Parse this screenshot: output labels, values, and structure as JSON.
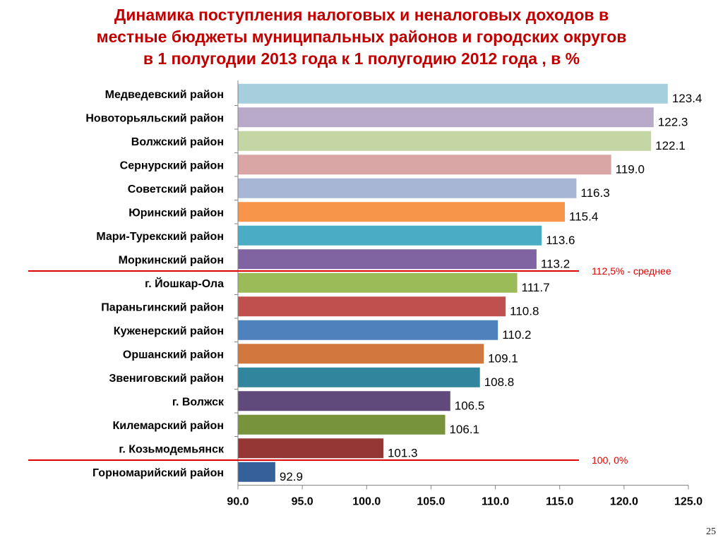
{
  "title_lines": [
    "Динамика поступления налоговых и неналоговых доходов в",
    "местные бюджеты муниципальных районов и городских округов",
    "в 1 полугодии 2013 года к 1 полугодию 2012 года , в %"
  ],
  "page_number": "25",
  "chart_data": {
    "type": "bar",
    "orientation": "horizontal",
    "categories": [
      "Медведевский район",
      "Новоторьяльский район",
      "Волжский район",
      "Сернурский район",
      "Советский район",
      "Юринский район",
      "Мари-Турекский район",
      "Моркинский район",
      "г. Йошкар-Ола",
      "Параньгинский район",
      "Куженерский район",
      "Оршанский район",
      "Звениговский район",
      "г. Волжск",
      "Килемарский район",
      "г. Козьмодемьянск",
      "Горномарийский район"
    ],
    "values": [
      123.4,
      122.3,
      122.1,
      119.0,
      116.3,
      115.4,
      113.6,
      113.2,
      111.7,
      110.8,
      110.2,
      109.1,
      108.8,
      106.5,
      106.1,
      101.3,
      92.9
    ],
    "value_labels": [
      "123.4",
      "122.3",
      "122.1",
      "119.0",
      "116.3",
      "115.4",
      "113.6",
      "113.2",
      "111.7",
      "110.8",
      "110.2",
      "109.1",
      "108.8",
      "106.5",
      "106.1",
      "101.3",
      "92.9"
    ],
    "colors": [
      "#a5cfdc",
      "#b9a9c9",
      "#c3d6a4",
      "#d9a5a5",
      "#a6b6d4",
      "#f7964a",
      "#4bacc6",
      "#8064a2",
      "#9bbb59",
      "#c0504d",
      "#4f81bd",
      "#d0783e",
      "#31859c",
      "#604a7b",
      "#77933c",
      "#953735",
      "#36609a"
    ],
    "xlim": [
      90.0,
      125.0
    ],
    "xticks": [
      90.0,
      95.0,
      100.0,
      105.0,
      110.0,
      115.0,
      120.0,
      125.0
    ],
    "xtick_labels": [
      "90.0",
      "95.0",
      "100.0",
      "105.0",
      "110.0",
      "115.0",
      "120.0",
      "125.0"
    ],
    "grid": false,
    "annotations": [
      {
        "text": "112,5% - среднее",
        "after_index": 7,
        "color": "#e00000"
      },
      {
        "text": "100, 0%",
        "after_index": 15,
        "color": "#e00000"
      }
    ]
  }
}
